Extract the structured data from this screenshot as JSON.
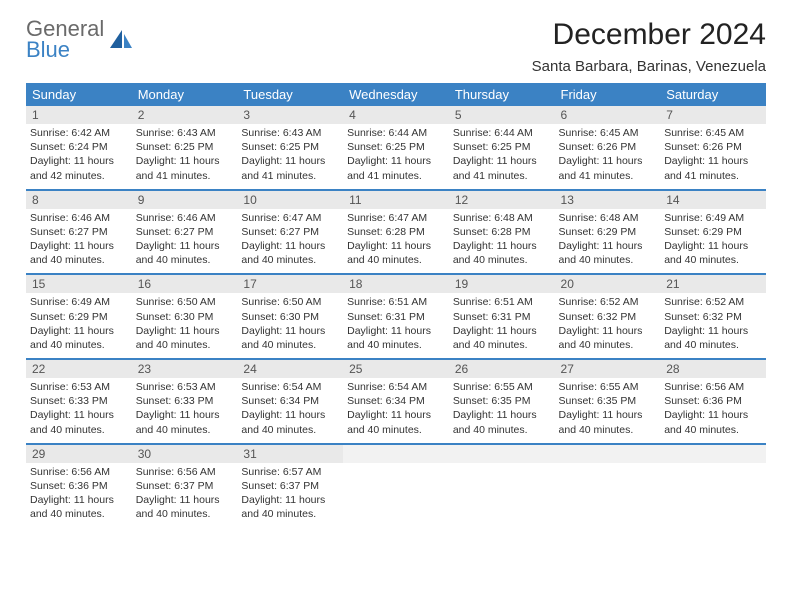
{
  "brand": {
    "word1": "General",
    "word2": "Blue"
  },
  "header": {
    "title": "December 2024",
    "location": "Santa Barbara, Barinas, Venezuela"
  },
  "colors": {
    "header_bg": "#3b82c4",
    "daynum_bg": "#e9e9e9",
    "row_divider": "#3b82c4",
    "logo_gray": "#6a6a6a",
    "logo_blue": "#3b82c4",
    "page_bg": "#ffffff"
  },
  "typography": {
    "title_fontsize": 30,
    "subtitle_fontsize": 15,
    "header_cell_fontsize": 13,
    "daynum_fontsize": 12,
    "body_fontsize": 10.5
  },
  "calendar": {
    "type": "table",
    "columns": [
      "Sunday",
      "Monday",
      "Tuesday",
      "Wednesday",
      "Thursday",
      "Friday",
      "Saturday"
    ],
    "weeks": [
      [
        {
          "n": "1",
          "sr": "Sunrise: 6:42 AM",
          "ss": "Sunset: 6:24 PM",
          "dl": "Daylight: 11 hours and 42 minutes."
        },
        {
          "n": "2",
          "sr": "Sunrise: 6:43 AM",
          "ss": "Sunset: 6:25 PM",
          "dl": "Daylight: 11 hours and 41 minutes."
        },
        {
          "n": "3",
          "sr": "Sunrise: 6:43 AM",
          "ss": "Sunset: 6:25 PM",
          "dl": "Daylight: 11 hours and 41 minutes."
        },
        {
          "n": "4",
          "sr": "Sunrise: 6:44 AM",
          "ss": "Sunset: 6:25 PM",
          "dl": "Daylight: 11 hours and 41 minutes."
        },
        {
          "n": "5",
          "sr": "Sunrise: 6:44 AM",
          "ss": "Sunset: 6:25 PM",
          "dl": "Daylight: 11 hours and 41 minutes."
        },
        {
          "n": "6",
          "sr": "Sunrise: 6:45 AM",
          "ss": "Sunset: 6:26 PM",
          "dl": "Daylight: 11 hours and 41 minutes."
        },
        {
          "n": "7",
          "sr": "Sunrise: 6:45 AM",
          "ss": "Sunset: 6:26 PM",
          "dl": "Daylight: 11 hours and 41 minutes."
        }
      ],
      [
        {
          "n": "8",
          "sr": "Sunrise: 6:46 AM",
          "ss": "Sunset: 6:27 PM",
          "dl": "Daylight: 11 hours and 40 minutes."
        },
        {
          "n": "9",
          "sr": "Sunrise: 6:46 AM",
          "ss": "Sunset: 6:27 PM",
          "dl": "Daylight: 11 hours and 40 minutes."
        },
        {
          "n": "10",
          "sr": "Sunrise: 6:47 AM",
          "ss": "Sunset: 6:27 PM",
          "dl": "Daylight: 11 hours and 40 minutes."
        },
        {
          "n": "11",
          "sr": "Sunrise: 6:47 AM",
          "ss": "Sunset: 6:28 PM",
          "dl": "Daylight: 11 hours and 40 minutes."
        },
        {
          "n": "12",
          "sr": "Sunrise: 6:48 AM",
          "ss": "Sunset: 6:28 PM",
          "dl": "Daylight: 11 hours and 40 minutes."
        },
        {
          "n": "13",
          "sr": "Sunrise: 6:48 AM",
          "ss": "Sunset: 6:29 PM",
          "dl": "Daylight: 11 hours and 40 minutes."
        },
        {
          "n": "14",
          "sr": "Sunrise: 6:49 AM",
          "ss": "Sunset: 6:29 PM",
          "dl": "Daylight: 11 hours and 40 minutes."
        }
      ],
      [
        {
          "n": "15",
          "sr": "Sunrise: 6:49 AM",
          "ss": "Sunset: 6:29 PM",
          "dl": "Daylight: 11 hours and 40 minutes."
        },
        {
          "n": "16",
          "sr": "Sunrise: 6:50 AM",
          "ss": "Sunset: 6:30 PM",
          "dl": "Daylight: 11 hours and 40 minutes."
        },
        {
          "n": "17",
          "sr": "Sunrise: 6:50 AM",
          "ss": "Sunset: 6:30 PM",
          "dl": "Daylight: 11 hours and 40 minutes."
        },
        {
          "n": "18",
          "sr": "Sunrise: 6:51 AM",
          "ss": "Sunset: 6:31 PM",
          "dl": "Daylight: 11 hours and 40 minutes."
        },
        {
          "n": "19",
          "sr": "Sunrise: 6:51 AM",
          "ss": "Sunset: 6:31 PM",
          "dl": "Daylight: 11 hours and 40 minutes."
        },
        {
          "n": "20",
          "sr": "Sunrise: 6:52 AM",
          "ss": "Sunset: 6:32 PM",
          "dl": "Daylight: 11 hours and 40 minutes."
        },
        {
          "n": "21",
          "sr": "Sunrise: 6:52 AM",
          "ss": "Sunset: 6:32 PM",
          "dl": "Daylight: 11 hours and 40 minutes."
        }
      ],
      [
        {
          "n": "22",
          "sr": "Sunrise: 6:53 AM",
          "ss": "Sunset: 6:33 PM",
          "dl": "Daylight: 11 hours and 40 minutes."
        },
        {
          "n": "23",
          "sr": "Sunrise: 6:53 AM",
          "ss": "Sunset: 6:33 PM",
          "dl": "Daylight: 11 hours and 40 minutes."
        },
        {
          "n": "24",
          "sr": "Sunrise: 6:54 AM",
          "ss": "Sunset: 6:34 PM",
          "dl": "Daylight: 11 hours and 40 minutes."
        },
        {
          "n": "25",
          "sr": "Sunrise: 6:54 AM",
          "ss": "Sunset: 6:34 PM",
          "dl": "Daylight: 11 hours and 40 minutes."
        },
        {
          "n": "26",
          "sr": "Sunrise: 6:55 AM",
          "ss": "Sunset: 6:35 PM",
          "dl": "Daylight: 11 hours and 40 minutes."
        },
        {
          "n": "27",
          "sr": "Sunrise: 6:55 AM",
          "ss": "Sunset: 6:35 PM",
          "dl": "Daylight: 11 hours and 40 minutes."
        },
        {
          "n": "28",
          "sr": "Sunrise: 6:56 AM",
          "ss": "Sunset: 6:36 PM",
          "dl": "Daylight: 11 hours and 40 minutes."
        }
      ],
      [
        {
          "n": "29",
          "sr": "Sunrise: 6:56 AM",
          "ss": "Sunset: 6:36 PM",
          "dl": "Daylight: 11 hours and 40 minutes."
        },
        {
          "n": "30",
          "sr": "Sunrise: 6:56 AM",
          "ss": "Sunset: 6:37 PM",
          "dl": "Daylight: 11 hours and 40 minutes."
        },
        {
          "n": "31",
          "sr": "Sunrise: 6:57 AM",
          "ss": "Sunset: 6:37 PM",
          "dl": "Daylight: 11 hours and 40 minutes."
        },
        null,
        null,
        null,
        null
      ]
    ]
  }
}
